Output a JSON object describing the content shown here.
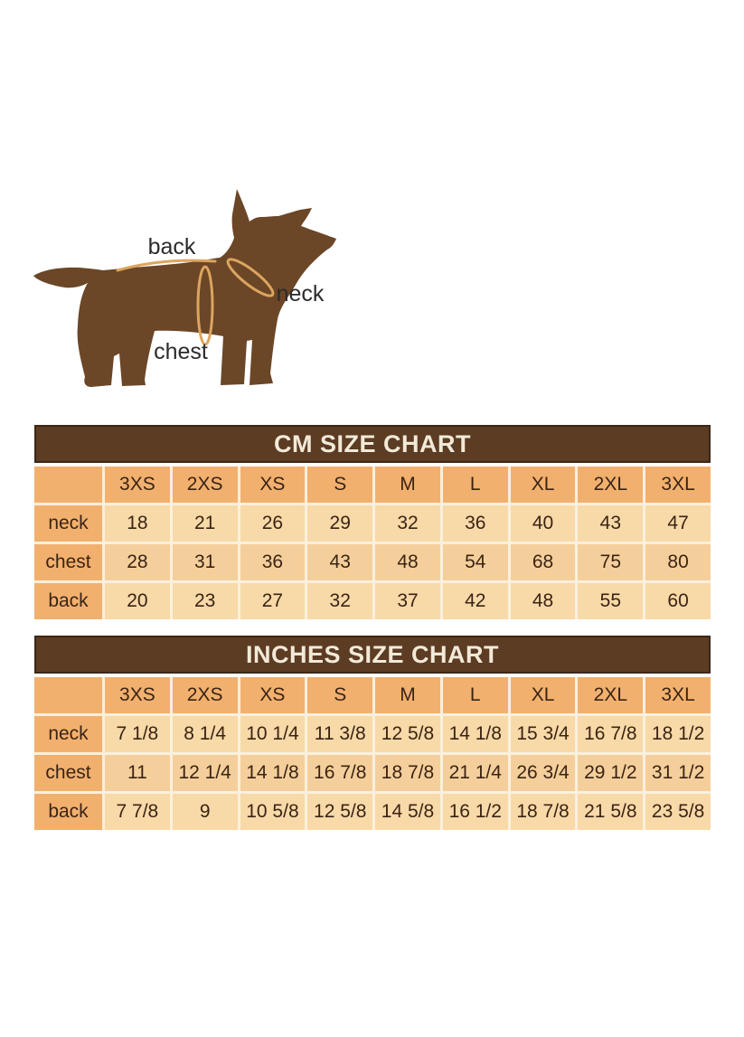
{
  "page": {
    "background": "#ffffff"
  },
  "diagram": {
    "back_label": "back",
    "neck_label": "neck",
    "chest_label": "chest"
  },
  "colors": {
    "dog_brown": "#6b4627",
    "measure_line": "#dca55f",
    "title_bar": "#5d3c24",
    "title_text": "#f2ead8",
    "header_cell": "#f2b06e",
    "cell_light": "#f8d9a8",
    "cell_medium": "#f5cf9b",
    "cell_text": "#3a2414",
    "label_text": "#2b2b2b"
  },
  "chart_data": [
    {
      "type": "table",
      "title": "CM SIZE CHART",
      "columns": [
        "3XS",
        "2XS",
        "XS",
        "S",
        "M",
        "L",
        "XL",
        "2XL",
        "3XL"
      ],
      "rows": [
        {
          "label": "neck",
          "values": [
            "18",
            "21",
            "26",
            "29",
            "32",
            "36",
            "40",
            "43",
            "47"
          ]
        },
        {
          "label": "chest",
          "values": [
            "28",
            "31",
            "36",
            "43",
            "48",
            "54",
            "68",
            "75",
            "80"
          ]
        },
        {
          "label": "back",
          "values": [
            "20",
            "23",
            "27",
            "32",
            "37",
            "42",
            "48",
            "55",
            "60"
          ]
        }
      ]
    },
    {
      "type": "table",
      "title": "INCHES SIZE CHART",
      "columns": [
        "3XS",
        "2XS",
        "XS",
        "S",
        "M",
        "L",
        "XL",
        "2XL",
        "3XL"
      ],
      "rows": [
        {
          "label": "neck",
          "values": [
            "7 1/8",
            "8 1/4",
            "10 1/4",
            "11 3/8",
            "12 5/8",
            "14 1/8",
            "15 3/4",
            "16 7/8",
            "18 1/2"
          ]
        },
        {
          "label": "chest",
          "values": [
            "11",
            "12 1/4",
            "14 1/8",
            "16 7/8",
            "18 7/8",
            "21 1/4",
            "26 3/4",
            "29 1/2",
            "31 1/2"
          ]
        },
        {
          "label": "back",
          "values": [
            "7 7/8",
            "9",
            "10 5/8",
            "12 5/8",
            "14 5/8",
            "16 1/2",
            "18 7/8",
            "21 5/8",
            "23 5/8"
          ]
        }
      ]
    }
  ]
}
